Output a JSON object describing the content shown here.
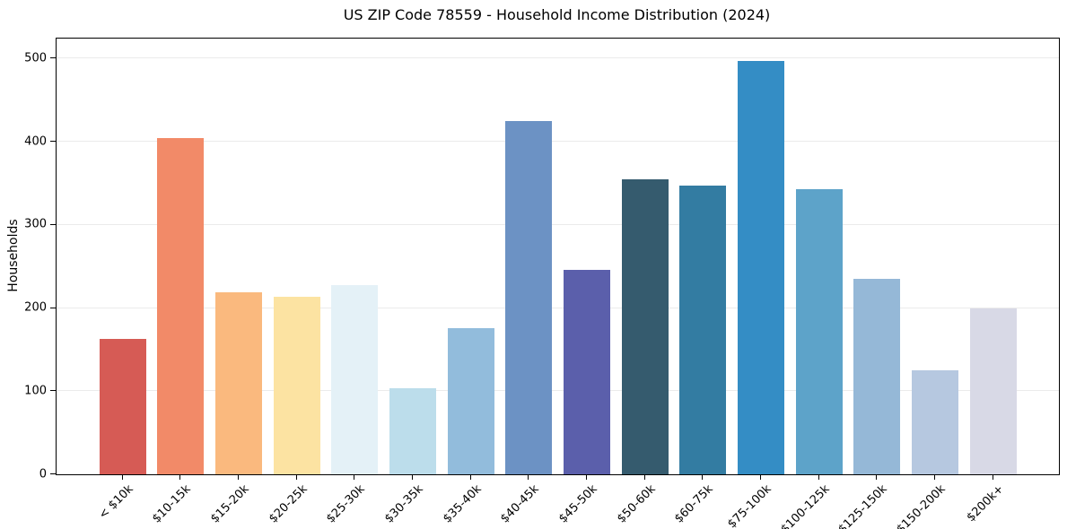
{
  "chart_data": {
    "type": "bar",
    "title": "US ZIP Code 78559 - Household Income Distribution (2024)",
    "xlabel": "",
    "ylabel": "Households",
    "categories": [
      "< $10k",
      "$10-15k",
      "$15-20k",
      "$20-25k",
      "$25-30k",
      "$30-35k",
      "$35-40k",
      "$40-45k",
      "$45-50k",
      "$50-60k",
      "$60-75k",
      "$75-100k",
      "$100-125k",
      "$125-150k",
      "$150-200k",
      "$200k+"
    ],
    "values": [
      163,
      404,
      219,
      213,
      227,
      103,
      176,
      425,
      246,
      355,
      347,
      497,
      343,
      235,
      125,
      200
    ],
    "bar_colors": [
      "#d65b55",
      "#f28a68",
      "#fab97e",
      "#fce3a2",
      "#e4f1f7",
      "#bcddeb",
      "#92bcdc",
      "#6c92c4",
      "#5b5fab",
      "#355b6e",
      "#337ca2",
      "#348dc5",
      "#5da3c9",
      "#95b8d7",
      "#b6c8e0",
      "#d8d9e6"
    ],
    "yticks": [
      0,
      100,
      200,
      300,
      400,
      500
    ],
    "ylim": [
      0,
      524
    ],
    "grid": "horizontal",
    "grid_color": "#ebebeb",
    "background_color": "#ffffff",
    "spine_color": "#000000",
    "xtick_rotation": 45,
    "legend": "none"
  }
}
